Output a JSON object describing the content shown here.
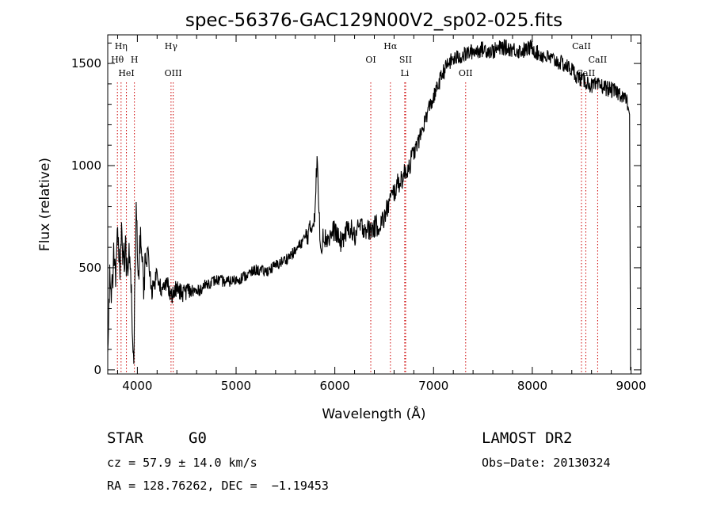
{
  "chart_data": {
    "type": "line",
    "title": "spec-56376-GAC129N00V2_sp02-025.fits",
    "xlabel": "Wavelength (Å)",
    "ylabel": "Flux (relative)",
    "xlim": [
      3700,
      9100
    ],
    "ylim": [
      -20,
      1640
    ],
    "x_ticks": [
      4000,
      5000,
      6000,
      7000,
      8000,
      9000
    ],
    "x_tick_labels": [
      "4000",
      "5000",
      "6000",
      "7000",
      "8000",
      "9000"
    ],
    "y_ticks": [
      0,
      500,
      1000,
      1500
    ],
    "y_tick_labels": [
      "0",
      "500",
      "1000",
      "1500"
    ],
    "grid": false,
    "line_color": "#000000",
    "marker_color": "#cc0000",
    "spectrum": {
      "x": [
        3700,
        3720,
        3740,
        3760,
        3780,
        3800,
        3820,
        3840,
        3860,
        3880,
        3900,
        3920,
        3940,
        3955,
        3965,
        3975,
        3990,
        4010,
        4030,
        4060,
        4100,
        4150,
        4200,
        4250,
        4300,
        4350,
        4400,
        4450,
        4500,
        4600,
        4700,
        4800,
        4900,
        5000,
        5100,
        5200,
        5300,
        5400,
        5500,
        5600,
        5700,
        5750,
        5780,
        5800,
        5820,
        5840,
        5860,
        5880,
        5900,
        5950,
        6000,
        6050,
        6100,
        6150,
        6200,
        6250,
        6300,
        6350,
        6400,
        6450,
        6500,
        6550,
        6600,
        6650,
        6700,
        6750,
        6800,
        6850,
        6900,
        6950,
        7000,
        7050,
        7100,
        7150,
        7200,
        7300,
        7400,
        7500,
        7600,
        7700,
        7800,
        7900,
        8000,
        8050,
        8100,
        8200,
        8300,
        8400,
        8450,
        8500,
        8550,
        8600,
        8700,
        8800,
        8900,
        8950,
        8980,
        9000
      ],
      "y": [
        100,
        500,
        380,
        560,
        420,
        700,
        480,
        640,
        520,
        600,
        430,
        580,
        360,
        100,
        120,
        500,
        780,
        470,
        650,
        420,
        600,
        380,
        480,
        380,
        430,
        360,
        400,
        370,
        390,
        380,
        420,
        440,
        430,
        440,
        460,
        490,
        480,
        510,
        540,
        580,
        650,
        680,
        720,
        790,
        1040,
        760,
        580,
        680,
        640,
        650,
        690,
        620,
        660,
        700,
        650,
        700,
        700,
        680,
        700,
        710,
        740,
        820,
        870,
        920,
        950,
        1000,
        1060,
        1120,
        1200,
        1280,
        1330,
        1400,
        1460,
        1500,
        1520,
        1540,
        1560,
        1570,
        1560,
        1580,
        1570,
        1560,
        1580,
        1550,
        1540,
        1520,
        1500,
        1470,
        1440,
        1420,
        1410,
        1390,
        1390,
        1370,
        1350,
        1320,
        1280,
        0
      ]
    },
    "lines": [
      {
        "name": "Hη",
        "x": 3835,
        "row": 0
      },
      {
        "name": "Hθ",
        "x": 3798,
        "row": 1
      },
      {
        "name": "H",
        "x": 3970,
        "row": 1
      },
      {
        "name": "HeI",
        "x": 3889,
        "row": 2
      },
      {
        "name": "Hγ",
        "x": 4341,
        "row": 0
      },
      {
        "name": "OIII",
        "x": 4363,
        "row": 2
      },
      {
        "name": "OI",
        "x": 6364,
        "row": 1
      },
      {
        "name": "Hα",
        "x": 6563,
        "row": 0
      },
      {
        "name": "SII",
        "x": 6717,
        "row": 1
      },
      {
        "name": "Li",
        "x": 6708,
        "row": 2
      },
      {
        "name": "OII",
        "x": 7325,
        "row": 2
      },
      {
        "name": "CaII",
        "x": 8498,
        "row": 0
      },
      {
        "name": "CaII",
        "x": 8662,
        "row": 1
      },
      {
        "name": "CaII",
        "x": 8542,
        "row": 2
      }
    ]
  },
  "info": {
    "class": "STAR",
    "subclass": "G0",
    "cz": "cz = 57.9 ± 14.0 km/s",
    "radec": "RA = 128.76262, DEC =  −1.19453",
    "survey": "LAMOST DR2",
    "obs_date": "Obs−Date: 20130324"
  }
}
